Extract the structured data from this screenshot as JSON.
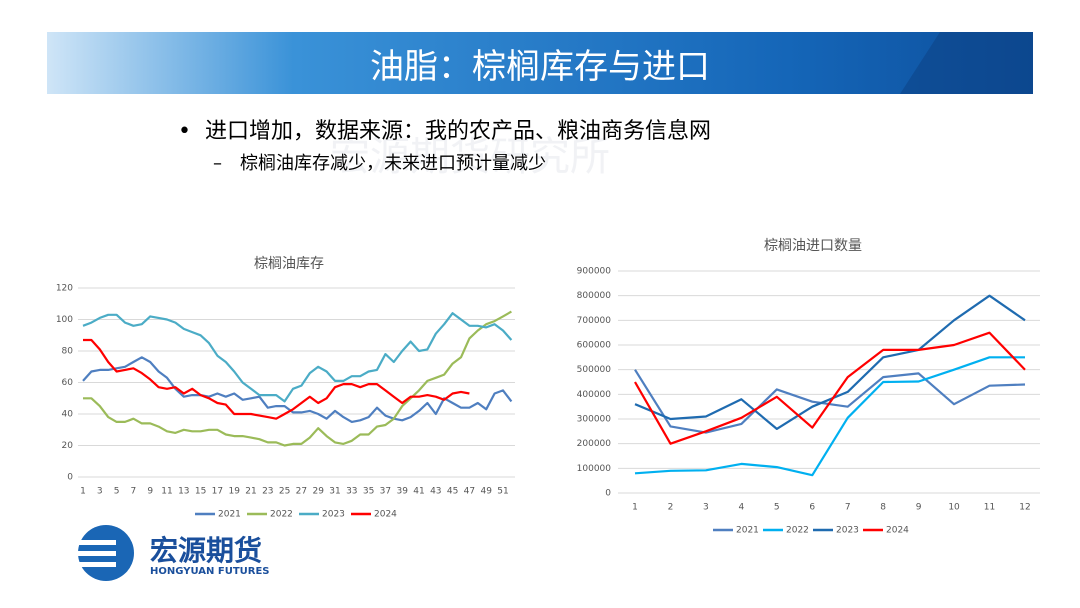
{
  "header": {
    "title": "油脂：棕榈库存与进口"
  },
  "bullets": [
    {
      "level": 1,
      "text": "进口增加，数据来源：我的农产品、粮油商务信息网"
    },
    {
      "level": 2,
      "text": "棕榈油库存减少，未来进口预计量减少"
    }
  ],
  "watermark": "宏源期货研究所",
  "logo": {
    "name": "宏源期货",
    "english": "HONGYUAN FUTURES"
  },
  "chart_data": [
    {
      "type": "line",
      "title": "棕榈油库存",
      "categories": [
        "1",
        null,
        "3",
        null,
        "5",
        null,
        "7",
        null,
        "9",
        null,
        "11",
        null,
        "13",
        null,
        "15",
        null,
        "17",
        null,
        "19",
        null,
        "21",
        null,
        "23",
        null,
        "25",
        null,
        "27",
        null,
        "29",
        null,
        "31",
        null,
        "33",
        null,
        "35",
        null,
        "37",
        null,
        "39",
        null,
        "41",
        null,
        "43",
        null,
        "45",
        null,
        "47",
        null,
        "49",
        null,
        "51",
        null
      ],
      "ylim": [
        0,
        120
      ],
      "yticks": [
        0,
        20,
        40,
        60,
        80,
        100,
        120
      ],
      "grid": true,
      "legend": "bottom",
      "series": [
        {
          "name": "2021",
          "color": "#4f7fc0",
          "values": [
            61,
            67,
            68,
            68,
            69,
            70,
            73,
            76,
            73,
            67,
            63,
            56,
            51,
            52,
            52,
            51,
            53,
            51,
            53,
            49,
            50,
            51,
            44,
            45,
            45,
            41,
            41,
            42,
            40,
            37,
            42,
            38,
            35,
            36,
            38,
            44,
            39,
            37,
            36,
            38,
            42,
            47,
            40,
            50,
            47,
            44,
            44,
            47,
            43,
            53,
            55,
            48
          ]
        },
        {
          "name": "2022",
          "color": "#9bbb59",
          "values": [
            50,
            50,
            45,
            38,
            35,
            35,
            37,
            34,
            34,
            32,
            29,
            28,
            30,
            29,
            29,
            30,
            30,
            27,
            26,
            26,
            25,
            24,
            22,
            22,
            20,
            21,
            21,
            25,
            31,
            26,
            22,
            21,
            23,
            27,
            27,
            32,
            33,
            37,
            45,
            50,
            55,
            61,
            63,
            65,
            72,
            76,
            88,
            93,
            97,
            99,
            102,
            105
          ]
        },
        {
          "name": "2023",
          "color": "#4bacc6",
          "values": [
            96,
            98,
            101,
            103,
            103,
            98,
            96,
            97,
            102,
            101,
            100,
            98,
            94,
            92,
            90,
            85,
            77,
            73,
            67,
            60,
            56,
            52,
            52,
            52,
            48,
            56,
            58,
            66,
            70,
            67,
            61,
            61,
            64,
            64,
            67,
            68,
            78,
            73,
            80,
            86,
            80,
            81,
            91,
            97,
            104,
            100,
            96,
            96,
            95,
            97,
            93,
            87
          ]
        },
        {
          "name": "2024",
          "color": "#ff0000",
          "values": [
            87,
            87,
            81,
            73,
            67,
            68,
            69,
            66,
            62,
            57,
            56,
            57,
            53,
            56,
            52,
            50,
            47,
            46,
            40,
            40,
            40,
            39,
            38,
            37,
            40,
            43,
            47,
            51,
            47,
            50,
            57,
            59,
            59,
            57,
            59,
            59,
            55,
            51,
            47,
            51,
            51,
            52,
            51,
            49,
            53,
            54,
            53,
            null,
            null,
            null,
            null,
            null
          ]
        }
      ]
    },
    {
      "type": "line",
      "title": "棕榈油进口数量",
      "categories": [
        "1",
        "2",
        "3",
        "4",
        "5",
        "6",
        "7",
        "8",
        "9",
        "10",
        "11",
        "12"
      ],
      "ylim": [
        0,
        900000
      ],
      "yticks": [
        0,
        100000,
        200000,
        300000,
        400000,
        500000,
        600000,
        700000,
        800000,
        900000
      ],
      "grid": true,
      "legend": "bottom",
      "series": [
        {
          "name": "2021",
          "color": "#4f7fc0",
          "values": [
            500000,
            270000,
            245000,
            280000,
            420000,
            370000,
            350000,
            470000,
            485000,
            360000,
            435000,
            440000
          ]
        },
        {
          "name": "2022",
          "color": "#00b0f0",
          "values": [
            80000,
            90000,
            92000,
            118000,
            105000,
            72000,
            305000,
            450000,
            452000,
            500000,
            550000,
            550000
          ]
        },
        {
          "name": "2023",
          "color": "#1f6bb0",
          "values": [
            360000,
            300000,
            310000,
            380000,
            260000,
            350000,
            410000,
            550000,
            580000,
            700000,
            800000,
            700000
          ]
        },
        {
          "name": "2024",
          "color": "#ff0000",
          "values": [
            450000,
            200000,
            250000,
            305000,
            390000,
            265000,
            470000,
            580000,
            580000,
            600000,
            650000,
            500000
          ]
        }
      ]
    }
  ]
}
